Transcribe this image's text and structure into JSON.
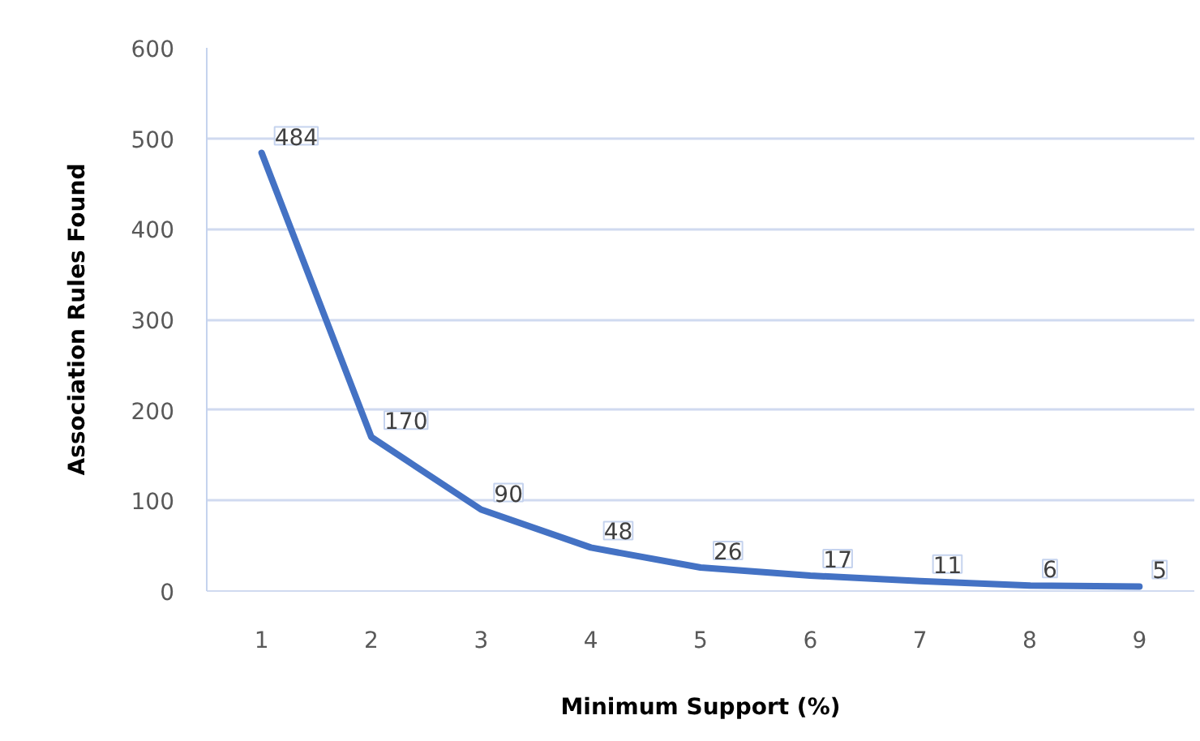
{
  "chart_data": {
    "type": "line",
    "xlabel": "Minimum Support (%)",
    "ylabel": "Association Rules Found",
    "categories": [
      "1",
      "2",
      "3",
      "4",
      "5",
      "6",
      "7",
      "8",
      "9"
    ],
    "series": [
      {
        "color": "#4472c4",
        "values": [
          484,
          170,
          90,
          48,
          26,
          17,
          11,
          6,
          5
        ]
      }
    ],
    "ylim": [
      0,
      600
    ],
    "yticks": [
      0,
      100,
      200,
      300,
      400,
      500,
      600
    ],
    "grid": "y",
    "data_labels": true,
    "marker": "none",
    "line_style": "solid"
  }
}
